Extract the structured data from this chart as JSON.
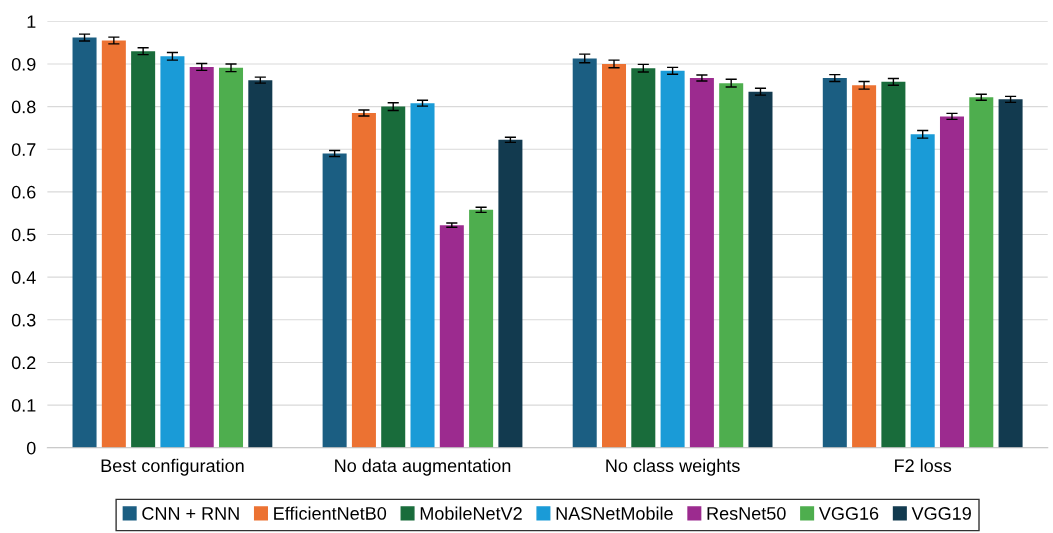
{
  "chart_data": {
    "type": "bar",
    "categories": [
      "Best configuration",
      "No data augmentation",
      "No class weights",
      "F2 loss"
    ],
    "series": [
      {
        "name": "CNN + RNN",
        "color": "#1b5e82",
        "values": [
          0.962,
          0.69,
          0.913,
          0.867
        ],
        "errors": [
          0.008,
          0.007,
          0.01,
          0.008
        ]
      },
      {
        "name": "EfficientNetB0",
        "color": "#ec7232",
        "values": [
          0.955,
          0.785,
          0.9,
          0.85
        ],
        "errors": [
          0.008,
          0.007,
          0.009,
          0.009
        ]
      },
      {
        "name": "MobileNetV2",
        "color": "#196c3b",
        "values": [
          0.93,
          0.8,
          0.89,
          0.858
        ],
        "errors": [
          0.008,
          0.009,
          0.009,
          0.008
        ]
      },
      {
        "name": "NASNetMobile",
        "color": "#1a9bd7",
        "values": [
          0.918,
          0.808,
          0.884,
          0.735
        ],
        "errors": [
          0.009,
          0.007,
          0.008,
          0.009
        ]
      },
      {
        "name": "ResNet50",
        "color": "#9c2b8f",
        "values": [
          0.893,
          0.522,
          0.867,
          0.777
        ],
        "errors": [
          0.008,
          0.005,
          0.007,
          0.007
        ]
      },
      {
        "name": "VGG16",
        "color": "#4eae4e",
        "values": [
          0.891,
          0.558,
          0.855,
          0.822
        ],
        "errors": [
          0.009,
          0.006,
          0.009,
          0.007
        ]
      },
      {
        "name": "VGG19",
        "color": "#123a4f",
        "values": [
          0.862,
          0.722,
          0.835,
          0.817
        ],
        "errors": [
          0.007,
          0.006,
          0.008,
          0.007
        ]
      }
    ],
    "ylim": [
      0,
      1
    ],
    "yticks": [
      0,
      0.1,
      0.2,
      0.3,
      0.4,
      0.5,
      0.6,
      0.7,
      0.8,
      0.9,
      1
    ],
    "grid": "y",
    "legend": "bottom"
  }
}
